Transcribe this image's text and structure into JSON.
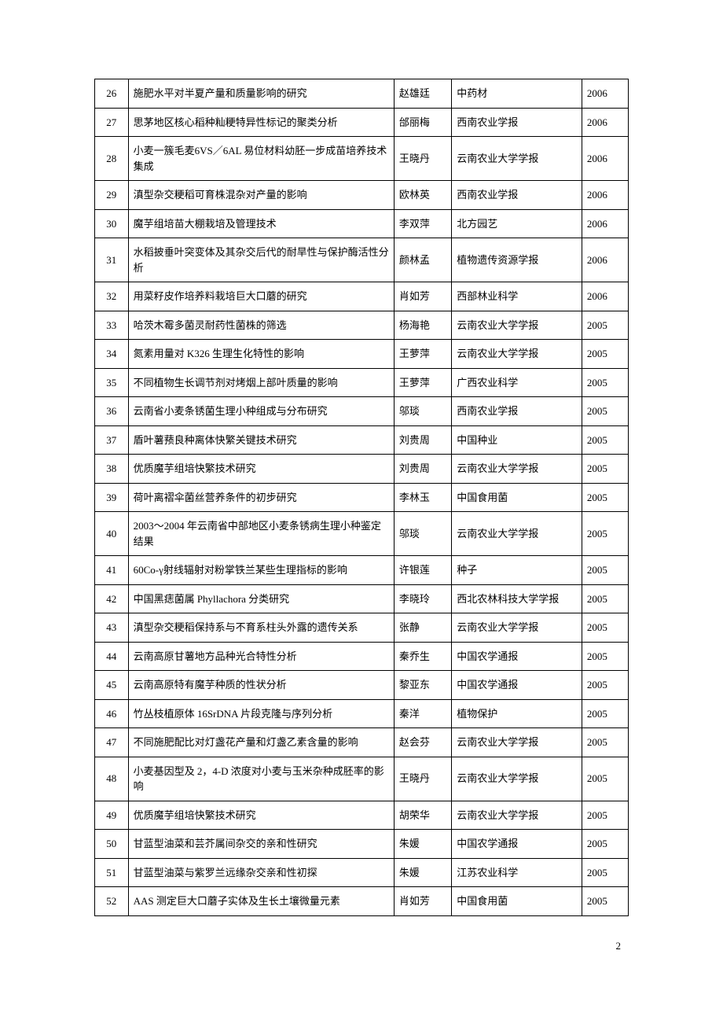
{
  "table": {
    "columns": {
      "num_width": 36,
      "title_width": 286,
      "author_width": 62,
      "journal_width": 140,
      "year_width": 50
    },
    "border_color": "#000000",
    "font_size": 13,
    "rows": [
      {
        "num": "26",
        "title": "施肥水平对半夏产量和质量影响的研究",
        "author": "赵雄廷",
        "journal": "中药材",
        "year": "2006"
      },
      {
        "num": "27",
        "title": "思茅地区核心稻种籼粳特异性标记的聚类分析",
        "author": "邰丽梅",
        "journal": "西南农业学报",
        "year": "2006"
      },
      {
        "num": "28",
        "title": "小麦一簇毛麦6VS／6AL 易位材料幼胚一步成苗培养技术集成",
        "author": "王晓丹",
        "journal": "云南农业大学学报",
        "year": "2006"
      },
      {
        "num": "29",
        "title": "滇型杂交粳稻可育株混杂对产量的影响",
        "author": "欧林英",
        "journal": "西南农业学报",
        "year": "2006"
      },
      {
        "num": "30",
        "title": "魔芋组培苗大棚栽培及管理技术",
        "author": "李双萍",
        "journal": "北方园艺",
        "year": "2006"
      },
      {
        "num": "31",
        "title": "水稻披垂叶突变体及其杂交后代的耐旱性与保护酶活性分析",
        "author": "颜林孟",
        "journal": "植物遗传资源学报",
        "year": "2006"
      },
      {
        "num": "32",
        "title": "用菜籽皮作培养料栽培巨大口蘑的研究",
        "author": "肖如芳",
        "journal": "西部林业科学",
        "year": "2006"
      },
      {
        "num": "33",
        "title": "哈茨木霉多菌灵耐药性菌株的筛选",
        "author": "杨海艳",
        "journal": "云南农业大学学报",
        "year": "2005"
      },
      {
        "num": "34",
        "title": "氮素用量对 K326 生理生化特性的影响",
        "author": "王萝萍",
        "journal": "云南农业大学学报",
        "year": "2005"
      },
      {
        "num": "35",
        "title": "不同植物生长调节剂对烤烟上部叶质量的影响",
        "author": "王萝萍",
        "journal": "广西农业科学",
        "year": "2005"
      },
      {
        "num": "36",
        "title": "云南省小麦条锈菌生理小种组成与分布研究",
        "author": "邬琰",
        "journal": "西南农业学报",
        "year": "2005"
      },
      {
        "num": "37",
        "title": "盾叶薯蓣良种离体快繁关键技术研究",
        "author": "刘贵周",
        "journal": "中国种业",
        "year": "2005"
      },
      {
        "num": "38",
        "title": "优质魔芋组培快繁技术研究",
        "author": "刘贵周",
        "journal": "云南农业大学学报",
        "year": "2005"
      },
      {
        "num": "39",
        "title": "荷叶离褶伞菌丝营养条件的初步研究",
        "author": "李林玉",
        "journal": "中国食用菌",
        "year": "2005"
      },
      {
        "num": "40",
        "title": "2003～2004 年云南省中部地区小麦条锈病生理小种鉴定结果",
        "author": "邬琰",
        "journal": "云南农业大学学报",
        "year": "2005"
      },
      {
        "num": "41",
        "title": "60Co-γ射线辐射对粉掌铁兰某些生理指标的影响",
        "author": "许银莲",
        "journal": "种子",
        "year": "2005"
      },
      {
        "num": "42",
        "title": "中国黑痣菌属 Phyllachora 分类研究",
        "author": "李晓玲",
        "journal": "西北农林科技大学学报",
        "year": "2005"
      },
      {
        "num": "43",
        "title": "滇型杂交粳稻保持系与不育系柱头外露的遗传关系",
        "author": "张静",
        "journal": "云南农业大学学报",
        "year": "2005"
      },
      {
        "num": "44",
        "title": "云南高原甘薯地方品种光合特性分析",
        "author": "秦乔生",
        "journal": "中国农学通报",
        "year": "2005"
      },
      {
        "num": "45",
        "title": "云南高原特有魔芋种质的性状分析",
        "author": "黎亚东",
        "journal": "中国农学通报",
        "year": "2005"
      },
      {
        "num": "46",
        "title": "竹丛枝植原体 16SrDNA 片段克隆与序列分析",
        "author": "秦洋",
        "journal": "植物保护",
        "year": "2005"
      },
      {
        "num": "47",
        "title": "不同施肥配比对灯盏花产量和灯盏乙素含量的影响",
        "author": "赵会芬",
        "journal": "云南农业大学学报",
        "year": "2005"
      },
      {
        "num": "48",
        "title": "小麦基因型及 2，4-D 浓度对小麦与玉米杂种成胚率的影响",
        "author": "王晓丹",
        "journal": "云南农业大学学报",
        "year": "2005"
      },
      {
        "num": "49",
        "title": "优质魔芋组培快繁技术研究",
        "author": "胡荣华",
        "journal": "云南农业大学学报",
        "year": "2005"
      },
      {
        "num": "50",
        "title": "甘蓝型油菜和芸芥属间杂交的亲和性研究",
        "author": "朱媛",
        "journal": "中国农学通报",
        "year": "2005"
      },
      {
        "num": "51",
        "title": "甘蓝型油菜与紫罗兰远缘杂交亲和性初探",
        "author": "朱媛",
        "journal": "江苏农业科学",
        "year": "2005"
      },
      {
        "num": "52",
        "title": "AAS 测定巨大口蘑子实体及生长土壤微量元素",
        "author": "肖如芳",
        "journal": "中国食用菌",
        "year": "2005"
      }
    ]
  },
  "page_number": "2"
}
